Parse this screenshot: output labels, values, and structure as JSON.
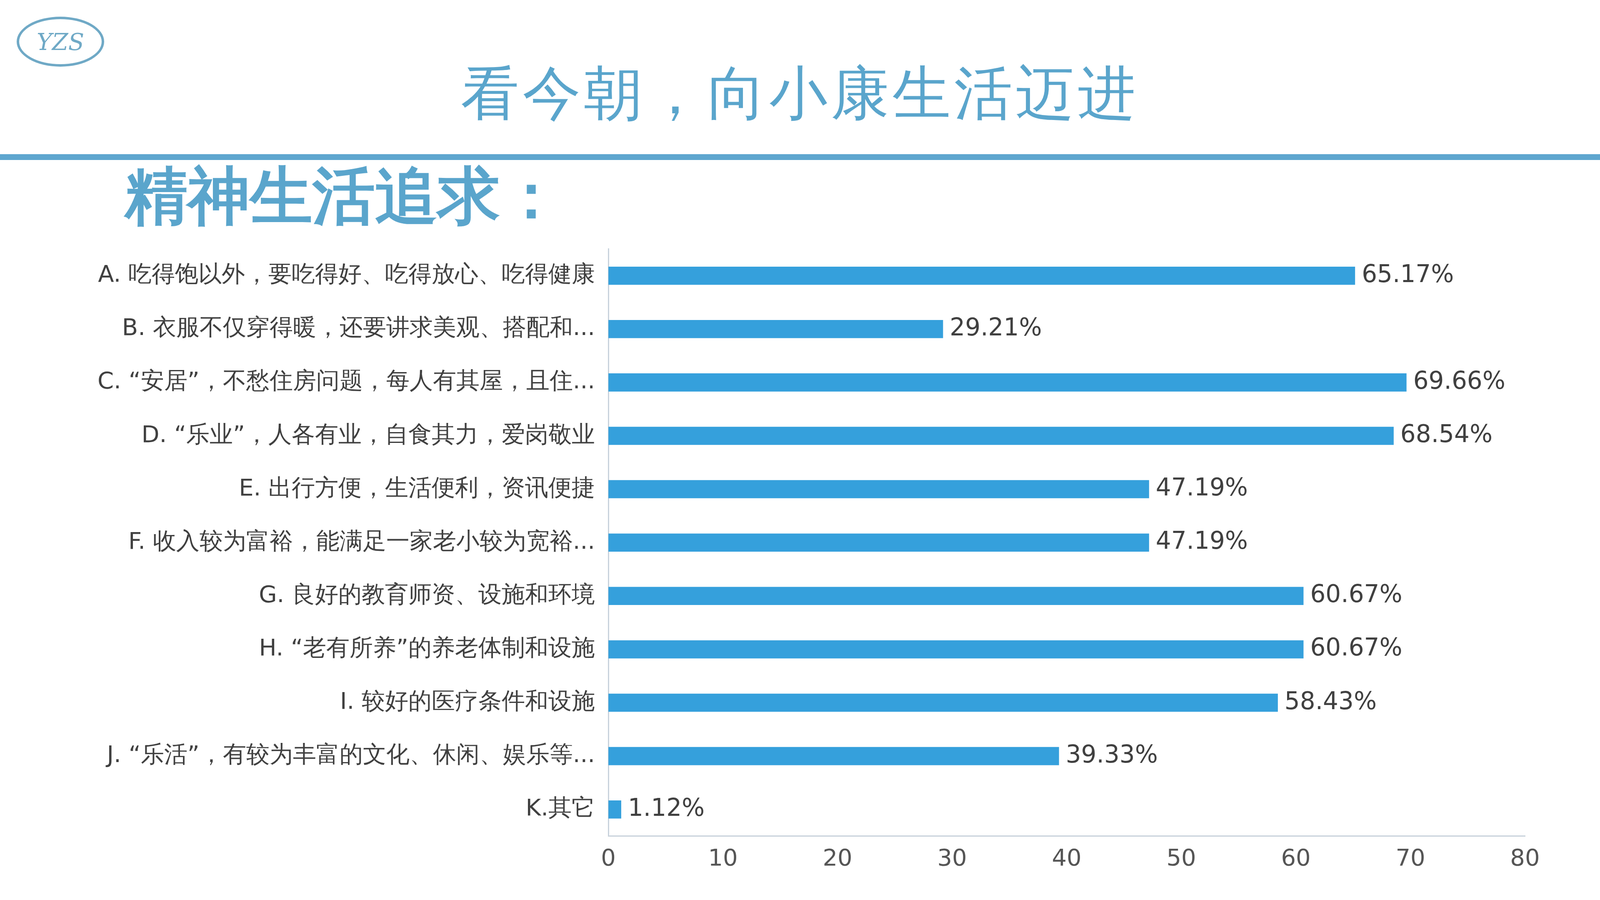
{
  "logo": "YZS",
  "title": "看今朝，向小康生活迈进",
  "subtitle": "精神生活追求：",
  "chart_data": {
    "type": "bar",
    "orientation": "horizontal",
    "categories": [
      "A. 吃得饱以外，要吃得好、吃得放心、吃得健康",
      "B. 衣服不仅穿得暖，还要讲求美观、搭配和...",
      "C. “安居”，不愁住房问题，每人有其屋，且住...",
      "D. “乐业”，人各有业，自食其力，爱岗敬业",
      "E. 出行方便，生活便利，资讯便捷",
      "F. 收入较为富裕，能满足一家老小较为宽裕...",
      "G. 良好的教育师资、设施和环境",
      "H. “老有所养”的养老体制和设施",
      "I. 较好的医疗条件和设施",
      "J. “乐活”，有较为丰富的文化、休闲、娱乐等...",
      "K.其它"
    ],
    "values": [
      65.17,
      29.21,
      69.66,
      68.54,
      47.19,
      47.19,
      60.67,
      60.67,
      58.43,
      39.33,
      1.12
    ],
    "value_labels": [
      "65.17%",
      "29.21%",
      "69.66%",
      "68.54%",
      "47.19%",
      "47.19%",
      "60.67%",
      "60.67%",
      "58.43%",
      "39.33%",
      "1.12%"
    ],
    "data_labels": true,
    "color": "#35a0dc",
    "xlim": [
      0,
      80
    ],
    "xticks": [
      0,
      10,
      20,
      30,
      40,
      50,
      60,
      70,
      80
    ],
    "grid": false
  }
}
